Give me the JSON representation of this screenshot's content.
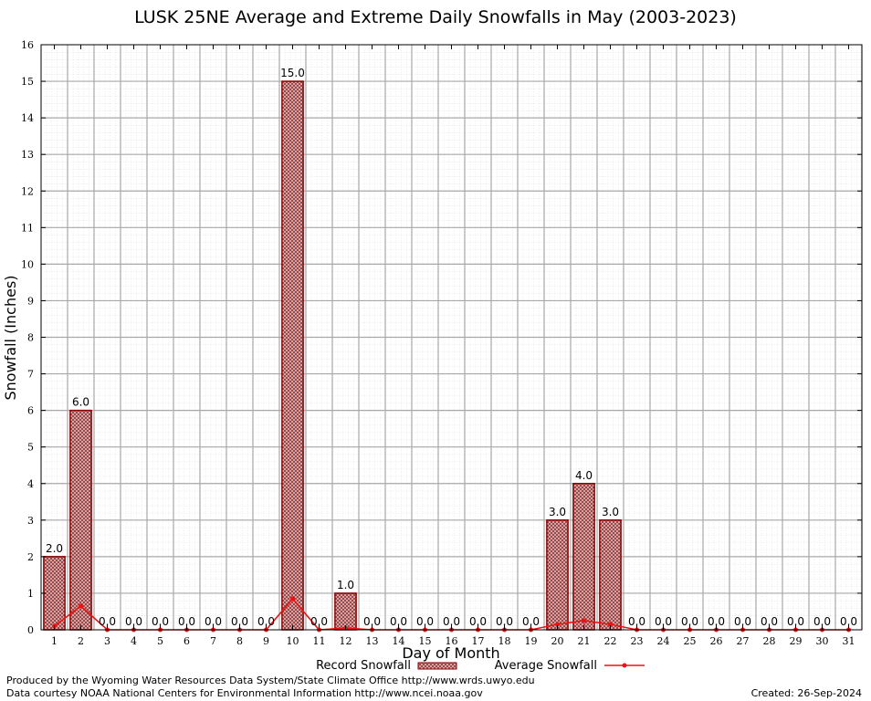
{
  "chart_data": {
    "type": "bar",
    "title": "LUSK 25NE Average and Extreme Daily Snowfalls in May (2003-2023)",
    "xlabel": "Day of Month",
    "ylabel": "Snowfall (Inches)",
    "ylim": [
      0,
      16
    ],
    "yticks": [
      "0",
      "1",
      "2",
      "3",
      "4",
      "5",
      "6",
      "7",
      "8",
      "9",
      "10",
      "11",
      "12",
      "13",
      "14",
      "15",
      "16"
    ],
    "categories": [
      "1",
      "2",
      "3",
      "4",
      "5",
      "6",
      "7",
      "8",
      "9",
      "10",
      "11",
      "12",
      "13",
      "14",
      "15",
      "16",
      "17",
      "18",
      "19",
      "20",
      "21",
      "22",
      "23",
      "24",
      "25",
      "26",
      "27",
      "28",
      "29",
      "30",
      "31"
    ],
    "grid": true,
    "legend_position": "bottom",
    "series": [
      {
        "name": "Record Snowfall",
        "kind": "bar",
        "color": "#8b0000",
        "values": [
          2.0,
          6.0,
          0.0,
          0.0,
          0.0,
          0.0,
          0.0,
          0.0,
          0.0,
          15.0,
          0.0,
          1.0,
          0.0,
          0.0,
          0.0,
          0.0,
          0.0,
          0.0,
          0.0,
          3.0,
          4.0,
          3.0,
          0.0,
          0.0,
          0.0,
          0.0,
          0.0,
          0.0,
          0.0,
          0.0,
          0.0
        ],
        "labels": [
          "2.0",
          "6.0",
          "0.0",
          "0.0",
          "0.0",
          "0.0",
          "0.0",
          "0.0",
          "0.0",
          "15.0",
          "0.0",
          "1.0",
          "0.0",
          "0.0",
          "0.0",
          "0.0",
          "0.0",
          "0.0",
          "0.0",
          "3.0",
          "4.0",
          "3.0",
          "0.0",
          "0.0",
          "0.0",
          "0.0",
          "0.0",
          "0.0",
          "0.0",
          "0.0",
          "0.0"
        ]
      },
      {
        "name": "Average Snowfall",
        "kind": "line",
        "color": "#ee1111",
        "values": [
          0.1,
          0.65,
          0.0,
          0.0,
          0.0,
          0.0,
          0.0,
          0.0,
          0.0,
          0.85,
          0.0,
          0.05,
          0.0,
          0.0,
          0.0,
          0.0,
          0.0,
          0.0,
          0.0,
          0.15,
          0.25,
          0.15,
          0.0,
          0.0,
          0.0,
          0.0,
          0.0,
          0.0,
          0.0,
          0.0,
          0.0
        ]
      }
    ]
  },
  "footer": {
    "produced_by": "Produced by the Wyoming Water Resources Data System/State Climate Office http://www.wrds.uwyo.edu",
    "courtesy": "Data courtesy NOAA National Centers for Environmental Information http://www.ncei.noaa.gov",
    "created": "Created: 26-Sep-2024"
  }
}
